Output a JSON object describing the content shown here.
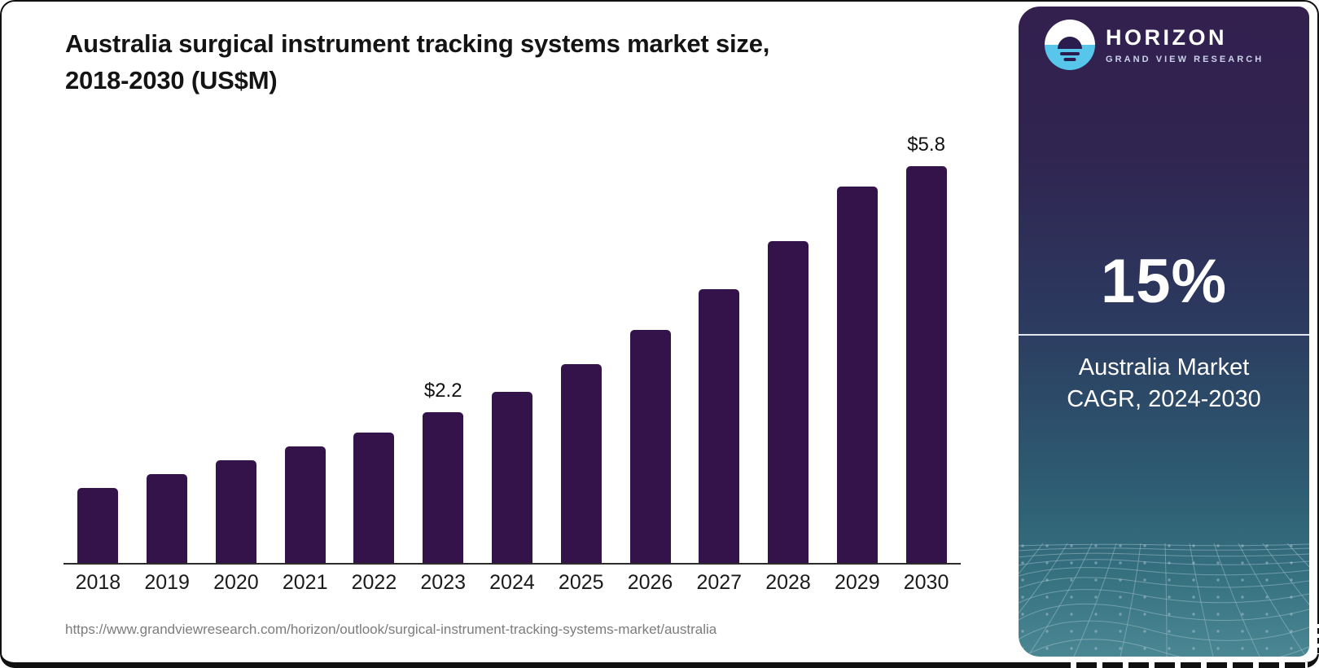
{
  "header": {
    "title_line1": "Australia surgical instrument tracking systems market size,",
    "title_line2": "2018-2030 (US$M)"
  },
  "chart_data": {
    "type": "bar",
    "title": "Australia surgical instrument tracking systems market size, 2018-2030 (US$M)",
    "categories": [
      "2018",
      "2019",
      "2020",
      "2021",
      "2022",
      "2023",
      "2024",
      "2025",
      "2026",
      "2027",
      "2028",
      "2029",
      "2030"
    ],
    "values": [
      1.1,
      1.3,
      1.5,
      1.7,
      1.9,
      2.2,
      2.5,
      2.9,
      3.4,
      4.0,
      4.7,
      5.5,
      5.8
    ],
    "annotations": [
      {
        "category": "2023",
        "text": "$2.2"
      },
      {
        "category": "2030",
        "text": "$5.8"
      }
    ],
    "xlabel": "",
    "ylabel": "",
    "ylim": [
      0,
      6.2
    ],
    "y_axis_visible": false,
    "grid": false,
    "legend": "none",
    "bar_color": "#33134a",
    "axis_color": "#2b2b2b"
  },
  "footer": {
    "source_url": "https://www.grandviewresearch.com/horizon/outlook/surgical-instrument-tracking-systems-market/australia"
  },
  "sidebar": {
    "logo": {
      "brand": "HORIZON",
      "subbrand": "GRAND VIEW RESEARCH",
      "icon": "horizon-sun-icon",
      "icon_accent": "#58c5ea",
      "icon_dark": "#2b1c4e"
    },
    "stat": {
      "value": "15%",
      "caption_line1": "Australia Market",
      "caption_line2": "CAGR, 2024-2030"
    },
    "gradient_top": "#33204f",
    "gradient_bottom": "#4a8793"
  }
}
